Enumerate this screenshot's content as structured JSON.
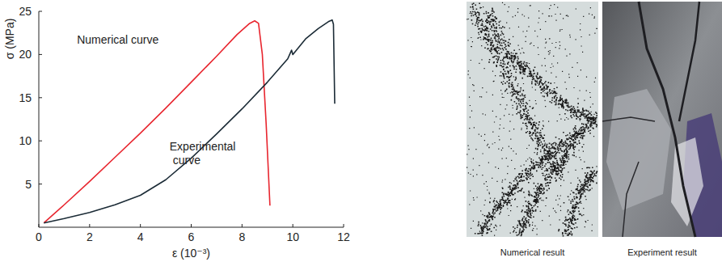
{
  "chart_data": {
    "type": "line",
    "x_label": "ε (10⁻³)",
    "y_label": "σ (MPa)",
    "xlim": [
      0,
      12
    ],
    "xticks": [
      0,
      2,
      4,
      6,
      8,
      10,
      12
    ],
    "ylim": [
      0,
      25
    ],
    "yticks": [
      5,
      10,
      15,
      20,
      25
    ],
    "grid": false,
    "series": [
      {
        "color": "#e8262f",
        "x": [
          0.2,
          1,
          2,
          3,
          4,
          5,
          6,
          7,
          7.8,
          8.3,
          8.5,
          8.65,
          8.8,
          8.95,
          9.1
        ],
        "values": [
          0.5,
          2.6,
          5.3,
          8.1,
          10.9,
          13.8,
          16.8,
          19.8,
          22.3,
          23.6,
          23.9,
          23.6,
          20,
          12,
          2.5
        ]
      },
      {
        "color": "#1b2b36",
        "x": [
          0.2,
          1,
          2,
          3,
          4,
          5,
          6,
          7,
          8,
          9,
          9.8,
          9.95,
          10,
          10.5,
          11,
          11.4,
          11.55,
          11.6,
          11.65
        ],
        "values": [
          0.5,
          1,
          1.7,
          2.6,
          3.7,
          5.5,
          8,
          10.8,
          13.7,
          16.8,
          19.5,
          20.5,
          20,
          21.8,
          23,
          23.8,
          24,
          23.5,
          14.3
        ]
      }
    ],
    "annotations": [
      {
        "text": "Numerical curve",
        "x": 1.5,
        "y": 21.3
      },
      {
        "text": "Experimental\ncurve",
        "x": 5.15,
        "y": 8.9
      }
    ]
  },
  "figures": [
    {
      "caption": "Numerical result"
    },
    {
      "caption": "Experiment result"
    }
  ]
}
